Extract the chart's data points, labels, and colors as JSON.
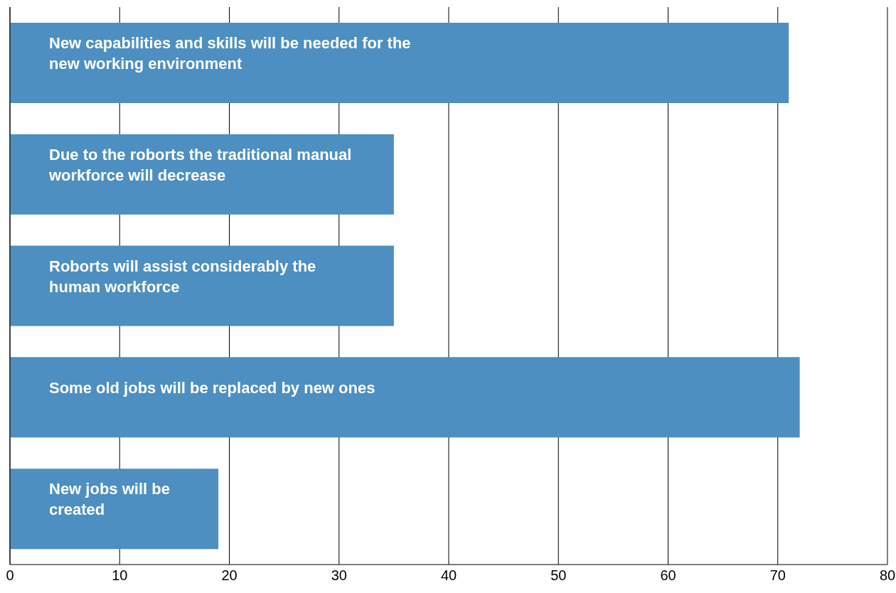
{
  "chart_data": {
    "type": "bar",
    "orientation": "horizontal",
    "categories": [
      "New capabilities and skills will be needed for the new working environment",
      "Due to the roborts the traditional manual workforce will decrease",
      "Roborts will assist considerably the human workforce",
      "Some old jobs will be replaced by new ones",
      "New jobs will be created"
    ],
    "values": [
      71,
      35,
      35,
      72,
      19
    ],
    "color": "#4d8fc1",
    "xlim": [
      0,
      80
    ],
    "xticks": [
      0,
      10,
      20,
      30,
      40,
      50,
      60,
      70,
      80
    ],
    "grid": "x",
    "tick_labels": "x"
  }
}
